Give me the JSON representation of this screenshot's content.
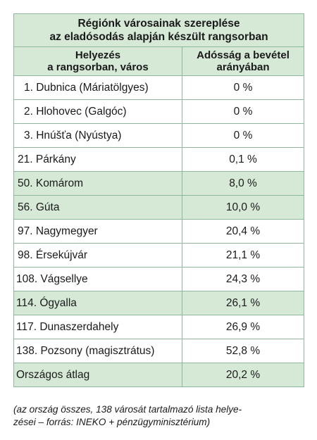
{
  "title": {
    "line1": "Régiónk városainak szereplése",
    "line2": "az eladósodás alapján készült rangsorban"
  },
  "headers": {
    "col1_line1": "Helyezés",
    "col1_line2": "a rangsorban, város",
    "col2_line1": "Adósság a bevétel",
    "col2_line2": "arányában"
  },
  "rows": [
    {
      "city": "1. Dubnica (Máriatölgyes)",
      "value": "0 %"
    },
    {
      "city": "2. Hlohovec (Galgóc)",
      "value": "0 %"
    },
    {
      "city": "3. Hnúšťa (Nyústya)",
      "value": "0 %"
    },
    {
      "city": "21. Párkány",
      "value": "0,1 %"
    },
    {
      "city": "50. Komárom",
      "value": "8,0 %"
    },
    {
      "city": "56. Gúta",
      "value": "10,0 %"
    },
    {
      "city": "97. Nagymegyer",
      "value": "20,4 %"
    },
    {
      "city": "98. Érsekújvár",
      "value": "21,1 %"
    },
    {
      "city": "108. Vágsellye",
      "value": "24,3 %"
    },
    {
      "city": "114. Ógyalla",
      "value": "26,1 %"
    },
    {
      "city": "117. Dunaszerdahely",
      "value": "26,9 %"
    },
    {
      "city": "138. Pozsony (magisztrátus)",
      "value": "52,8 %"
    }
  ],
  "average": {
    "label": "Országos átlag",
    "value": "20,2 %"
  },
  "caption": {
    "line1": "(az ország összes, 138 városát tartalmazó lista helye-",
    "line2": "zései – forrás: INEKO + pénzügyminisztérium)"
  }
}
